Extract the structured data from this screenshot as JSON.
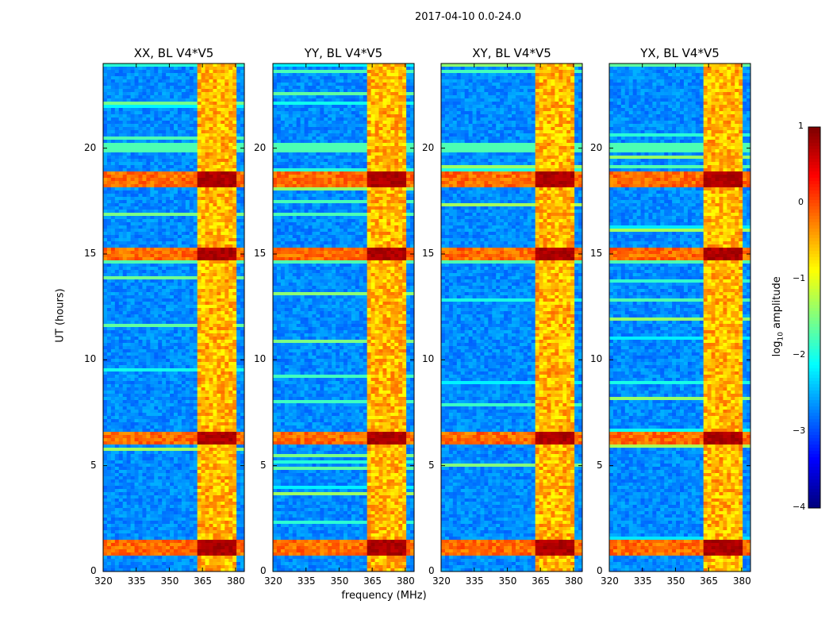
{
  "chart_data": {
    "type": "heatmap",
    "suptitle": "2017-04-10 0.0-24.0",
    "xlabel": "frequency (MHz)",
    "ylabel": "UT (hours)",
    "panels": [
      {
        "title": "XX, BL V4*V5"
      },
      {
        "title": "YY, BL V4*V5"
      },
      {
        "title": "XY, BL V4*V5"
      },
      {
        "title": "YX, BL V4*V5"
      }
    ],
    "x_ticks": [
      320,
      335,
      350,
      365,
      380
    ],
    "x_tick_labels": [
      "320",
      "335",
      "350",
      "365",
      "380"
    ],
    "xlim": [
      320,
      384
    ],
    "y_ticks": [
      0,
      5,
      10,
      15,
      20
    ],
    "y_tick_labels": [
      "0",
      "5",
      "10",
      "15",
      "20"
    ],
    "ylim": [
      0,
      24
    ],
    "colorbar": {
      "label": "log10 amplitude",
      "label_base": "log",
      "label_sub": "10",
      "label_rest": " amplitude",
      "range": [
        -4,
        1
      ],
      "ticks": [
        -4,
        -3,
        -2,
        -1,
        0,
        1
      ],
      "tick_labels": [
        "−4",
        "−3",
        "−2",
        "−1",
        "0",
        "1"
      ],
      "colormap": "jet"
    },
    "features": {
      "rfi_band_mhz": [
        363,
        381
      ],
      "strong_rfi_hours": [
        1.1,
        6.3,
        15.0,
        18.5
      ]
    }
  }
}
